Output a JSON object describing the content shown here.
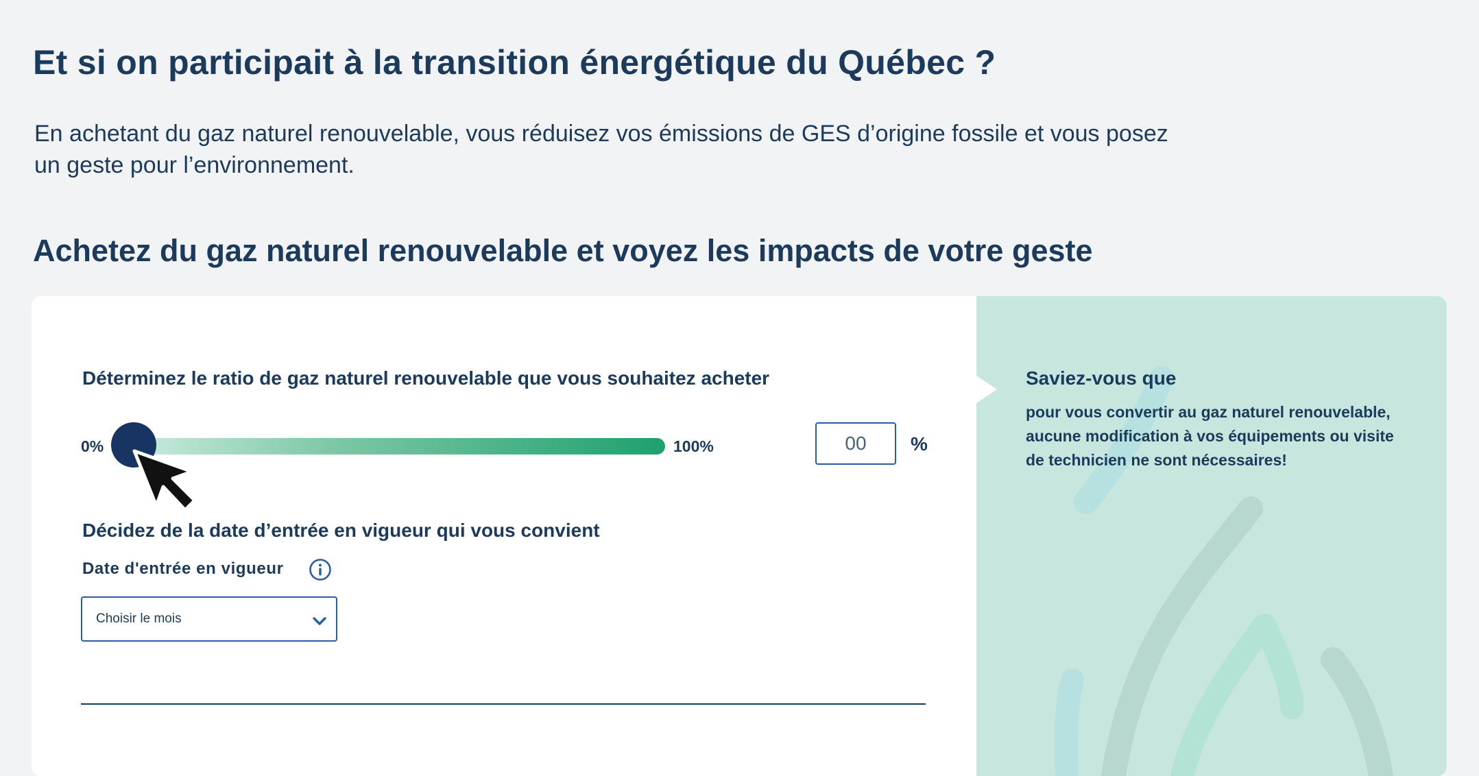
{
  "page": {
    "title": "Et si on participait à la transition énergétique du Québec ?",
    "intro": "En achetant du gaz naturel renouvelable, vous réduisez vos émissions de GES d’origine fossile et vous posez un geste pour l’environnement.",
    "subtitle": "Achetez du gaz naturel renouvelable et voyez les impacts de votre geste"
  },
  "ratio": {
    "label": "Déterminez le ratio de gaz naturel renouvelable que vous souhaitez acheter",
    "min_label": "0%",
    "max_label": "100%",
    "slider_value": 0,
    "input_placeholder": "00",
    "unit": "%"
  },
  "date": {
    "heading": "Décidez de la date d’entrée en vigueur qui vous convient",
    "field_label": "Date d'entrée en vigueur",
    "select_placeholder": "Choisir le mois"
  },
  "tip": {
    "title": "Saviez-vous que",
    "body": "pour vous convertir au gaz naturel renouvelable, aucune modification à vos équipements ou visite de technicien ne sont nécessaires!"
  },
  "colors": {
    "text": "#1b3a5c",
    "thumb": "#173463",
    "track_end": "#1ea16e",
    "panel": "#c6e6de",
    "input_border": "#2a5ba8"
  },
  "icons": {
    "info": "info-icon",
    "chevron": "chevron-down-icon",
    "cursor": "cursor-arrow-icon"
  }
}
